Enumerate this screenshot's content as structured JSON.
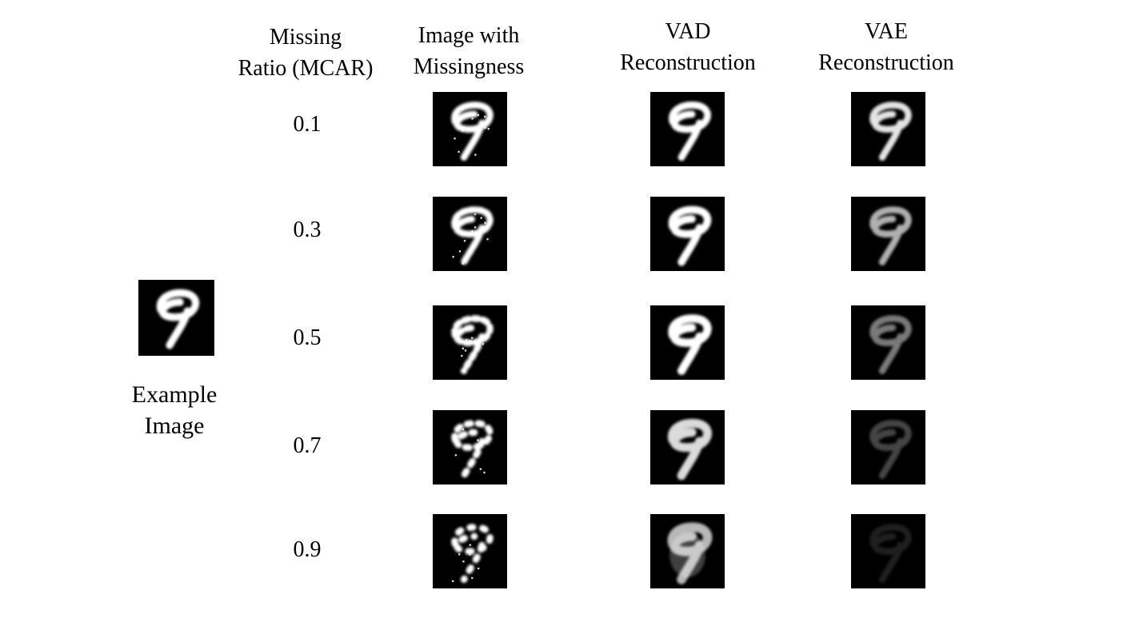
{
  "headers": {
    "missing_ratio": [
      "Missing",
      "Ratio (MCAR)"
    ],
    "image_with_missingness": [
      "Image with",
      "Missingness"
    ],
    "vad_reconstruction": [
      "VAD",
      "Reconstruction"
    ],
    "vae_reconstruction": [
      "VAE",
      "Reconstruction"
    ]
  },
  "rows": [
    {
      "ratio": "0.1",
      "missing_level": 0.1
    },
    {
      "ratio": "0.3",
      "missing_level": 0.3
    },
    {
      "ratio": "0.5",
      "missing_level": 0.5
    },
    {
      "ratio": "0.7",
      "missing_level": 0.7
    },
    {
      "ratio": "0.9",
      "missing_level": 0.9
    }
  ],
  "example": {
    "caption": [
      "Example",
      "Image"
    ],
    "digit": "9"
  },
  "colors": {
    "tile_background": "#000000",
    "digit_stroke": "#ffffff"
  }
}
